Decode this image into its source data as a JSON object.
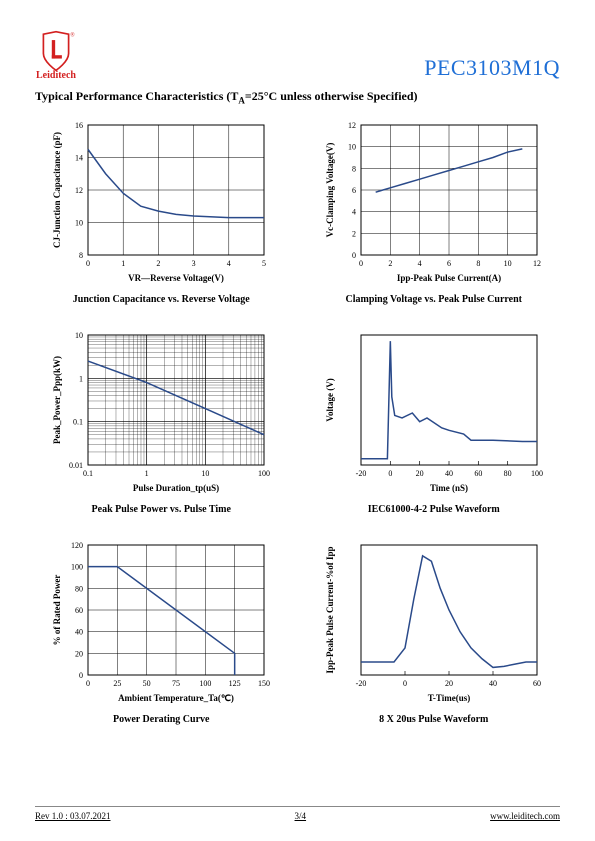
{
  "brand": {
    "name": "Leiditech",
    "logo_color": "#d32020",
    "reg_mark": "®"
  },
  "part_number": "PEC3103M1Q",
  "section_title_pre": "Typical Performance Characteristics (T",
  "section_title_sub": "A",
  "section_title_post": "=25°C unless otherwise Specified)",
  "line_color": "#2a4a8a",
  "grid_color": "#000000",
  "axis_font_size": 8,
  "label_font_size": 9,
  "chart1": {
    "xlabel": "VR—Reverse Voltage(V)",
    "ylabel": "CJ-Junction Capacitance (pF)",
    "caption": "Junction Capacitance vs. Reverse Voltage",
    "xlim": [
      0,
      5
    ],
    "xticks": [
      0,
      1,
      2,
      3,
      4,
      5
    ],
    "ylim": [
      8,
      16
    ],
    "yticks": [
      8,
      10,
      12,
      14,
      16
    ],
    "data": [
      [
        0,
        14.5
      ],
      [
        0.5,
        13.0
      ],
      [
        1,
        11.8
      ],
      [
        1.5,
        11.0
      ],
      [
        2,
        10.7
      ],
      [
        2.5,
        10.5
      ],
      [
        3,
        10.4
      ],
      [
        4,
        10.3
      ],
      [
        5,
        10.3
      ]
    ]
  },
  "chart2": {
    "xlabel": "Ipp-Peak Pulse Current(A)",
    "ylabel": "Vc-Clamping Voltage(V)",
    "caption": "Clamping Voltage vs. Peak Pulse Current",
    "xlim": [
      0,
      12
    ],
    "xticks": [
      0,
      2,
      4,
      6,
      8,
      10,
      12
    ],
    "ylim": [
      0,
      12
    ],
    "yticks": [
      0,
      2,
      4,
      6,
      8,
      10,
      12
    ],
    "data": [
      [
        1,
        5.8
      ],
      [
        2,
        6.2
      ],
      [
        3,
        6.6
      ],
      [
        4,
        7.0
      ],
      [
        5,
        7.4
      ],
      [
        6,
        7.8
      ],
      [
        7,
        8.2
      ],
      [
        8,
        8.6
      ],
      [
        9,
        9.0
      ],
      [
        10,
        9.5
      ],
      [
        11,
        9.8
      ]
    ]
  },
  "chart3": {
    "xlabel": "Pulse Duration_tp(uS)",
    "ylabel": "Peak_Power_Ppp(kW)",
    "caption": "Peak Pulse Power vs. Pulse Time",
    "xlog": true,
    "ylog": true,
    "xlim": [
      0.1,
      100
    ],
    "xticks": [
      0.1,
      1.0,
      10.0,
      100.0
    ],
    "ylim": [
      0.01,
      10
    ],
    "yticks": [
      0.01,
      0.1,
      1,
      10
    ],
    "data": [
      [
        0.1,
        2.5
      ],
      [
        1,
        0.8
      ],
      [
        10,
        0.2
      ],
      [
        100,
        0.05
      ]
    ]
  },
  "chart4": {
    "xlabel": "Time (nS)",
    "ylabel": "Voltage (V)",
    "caption": "IEC61000-4-2 Pulse Waveform",
    "xlim": [
      -20,
      100
    ],
    "xticks": [
      -20,
      0,
      20,
      40,
      60,
      80,
      100
    ],
    "data": [
      [
        -20,
        0.05
      ],
      [
        -2,
        0.05
      ],
      [
        0,
        1.0
      ],
      [
        1,
        0.55
      ],
      [
        3,
        0.4
      ],
      [
        8,
        0.38
      ],
      [
        15,
        0.42
      ],
      [
        20,
        0.35
      ],
      [
        25,
        0.38
      ],
      [
        35,
        0.3
      ],
      [
        40,
        0.28
      ],
      [
        50,
        0.25
      ],
      [
        55,
        0.2
      ],
      [
        70,
        0.2
      ],
      [
        90,
        0.19
      ],
      [
        100,
        0.19
      ]
    ]
  },
  "chart5": {
    "xlabel": "Ambient Temperature_Ta(℃)",
    "ylabel": "% of Rated Power",
    "caption": "Power Derating Curve",
    "xlim": [
      0,
      150
    ],
    "xticks": [
      0,
      25,
      50,
      75,
      100,
      125,
      150
    ],
    "ylim": [
      0,
      120
    ],
    "yticks": [
      0,
      20,
      40,
      60,
      80,
      100,
      120
    ],
    "data": [
      [
        0,
        100
      ],
      [
        25,
        100
      ],
      [
        125,
        20
      ],
      [
        125,
        0
      ]
    ]
  },
  "chart6": {
    "xlabel": "T-Time(us)",
    "ylabel": "Ipp-Peak Pulse Current-%of Ipp",
    "caption": "8 X 20us Pulse Waveform",
    "xlim": [
      -20,
      60
    ],
    "xticks": [
      -20,
      0,
      20,
      40,
      60
    ],
    "data": [
      [
        -20,
        2
      ],
      [
        -5,
        2
      ],
      [
        0,
        15
      ],
      [
        4,
        60
      ],
      [
        8,
        100
      ],
      [
        12,
        95
      ],
      [
        16,
        70
      ],
      [
        20,
        50
      ],
      [
        25,
        30
      ],
      [
        30,
        15
      ],
      [
        35,
        5
      ],
      [
        40,
        -3
      ],
      [
        45,
        -2
      ],
      [
        50,
        0
      ],
      [
        55,
        2
      ],
      [
        60,
        2
      ]
    ]
  },
  "footer": {
    "rev": "Rev 1.0 : 03.07.2021",
    "page": "3/4",
    "url": "www.leiditech.com"
  }
}
